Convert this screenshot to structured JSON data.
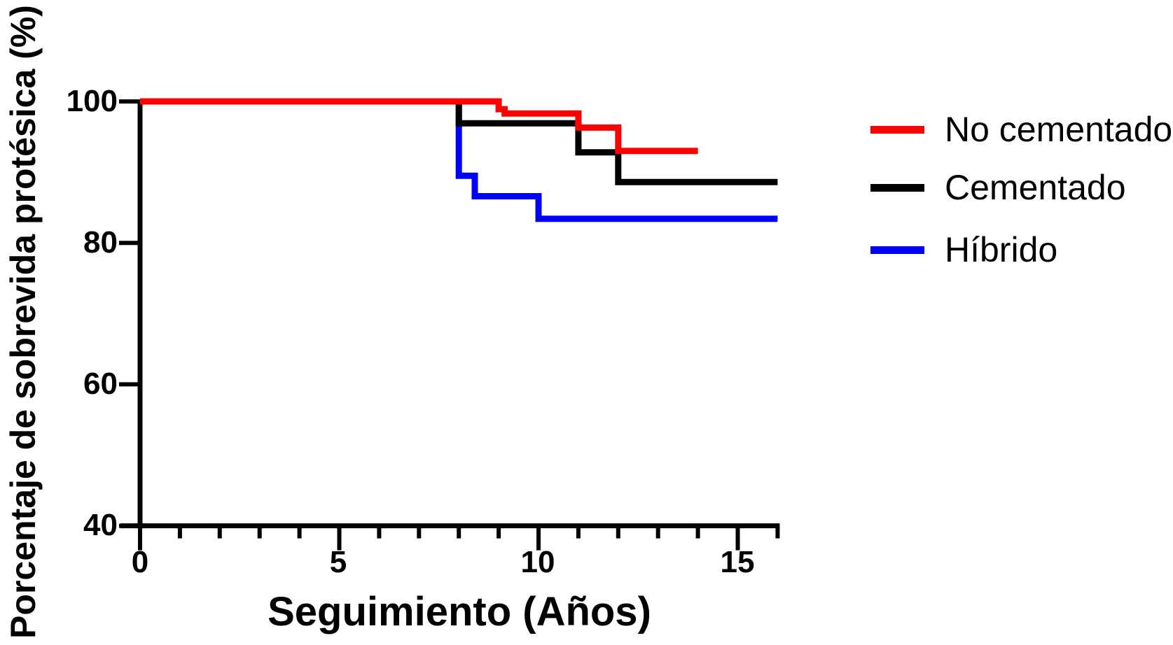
{
  "chart_data": {
    "type": "line",
    "subtype": "kaplan-meier-step",
    "title": "",
    "xlabel": "Seguimiento (Años)",
    "ylabel": "Porcentaje de sobrevida protésica (%)",
    "xlim": [
      0,
      16
    ],
    "ylim": [
      40,
      100
    ],
    "x_major_ticks": [
      0,
      5,
      10,
      15
    ],
    "x_tick_labels": [
      "0",
      "5",
      "10",
      "15"
    ],
    "x_minor_tick_interval": 1,
    "y_major_ticks": [
      100,
      80,
      60,
      40
    ],
    "y_tick_labels": [
      "100",
      "80",
      "60",
      "40"
    ],
    "grid": false,
    "legend_position": "right",
    "axis_color": "#000000",
    "series": [
      {
        "name": "No cementado",
        "color": "#ff0000",
        "ends_at_year": 14,
        "points": [
          [
            0,
            100
          ],
          [
            9,
            100
          ],
          [
            9,
            98.9
          ],
          [
            9.15,
            98.9
          ],
          [
            9.15,
            98.3
          ],
          [
            11,
            98.3
          ],
          [
            11,
            96.3
          ],
          [
            12,
            96.3
          ],
          [
            12,
            93
          ],
          [
            14,
            93
          ]
        ]
      },
      {
        "name": "Cementado",
        "color": "#000000",
        "ends_at_year": 16,
        "points": [
          [
            0,
            100
          ],
          [
            8,
            100
          ],
          [
            8,
            96.9
          ],
          [
            11,
            96.9
          ],
          [
            11,
            92.8
          ],
          [
            12,
            92.8
          ],
          [
            12,
            88.6
          ],
          [
            16,
            88.6
          ]
        ]
      },
      {
        "name": "Híbrido",
        "color": "#0000ff",
        "ends_at_year": 16,
        "points": [
          [
            0,
            100
          ],
          [
            8,
            100
          ],
          [
            8,
            89.5
          ],
          [
            8.4,
            89.5
          ],
          [
            8.4,
            86.6
          ],
          [
            10,
            86.6
          ],
          [
            10,
            83.4
          ],
          [
            16,
            83.4
          ]
        ]
      }
    ]
  }
}
